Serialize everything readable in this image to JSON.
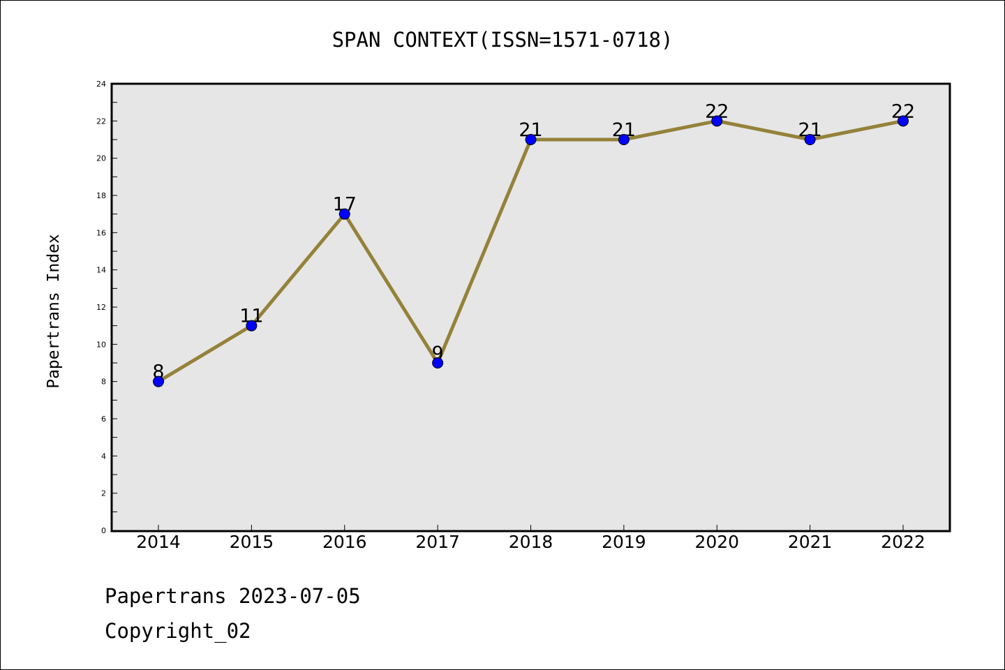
{
  "chart_data": {
    "type": "line",
    "title": "SPAN CONTEXT(ISSN=1571-0718)",
    "xlabel": "",
    "ylabel": "Papertrans Index",
    "categories": [
      "2014",
      "2015",
      "2016",
      "2017",
      "2018",
      "2019",
      "2020",
      "2021",
      "2022"
    ],
    "series": [
      {
        "values": [
          8,
          11,
          17,
          9,
          21,
          21,
          22,
          21,
          22
        ]
      }
    ],
    "ylim": [
      0,
      24
    ],
    "yticks": [
      0,
      2,
      4,
      6,
      8,
      10,
      12,
      14,
      16,
      18,
      20,
      22,
      24
    ],
    "data_labels": true,
    "grid": false,
    "legend": "none",
    "colors": {
      "line": "#94823a",
      "marker": "#0000ff",
      "plot_bg": "#e6e6e6"
    }
  },
  "footer": {
    "line1": "Papertrans 2023-07-05",
    "line2": "Copyright_02"
  }
}
